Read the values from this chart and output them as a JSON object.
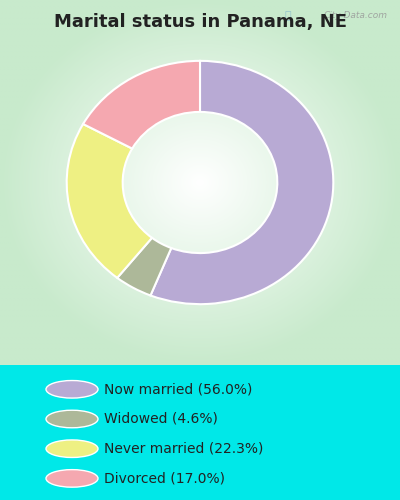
{
  "title": "Marital status in Panama, NE",
  "values": [
    56.0,
    4.6,
    22.3,
    17.0
  ],
  "colors": [
    "#b8aad4",
    "#adb899",
    "#eef083",
    "#f5a8b0"
  ],
  "background_color_outer": "#00e8e8",
  "chart_bg_center": "#ffffff",
  "chart_bg_edge": "#c8eacc",
  "legend_labels": [
    "Now married (56.0%)",
    "Widowed (4.6%)",
    "Never married (22.3%)",
    "Divorced (17.0%)"
  ],
  "watermark": "City-Data.com",
  "donut_width": 0.42,
  "start_angle": 90,
  "title_color": "#222222",
  "legend_text_color": "#222222",
  "title_fontsize": 13,
  "legend_fontsize": 10
}
